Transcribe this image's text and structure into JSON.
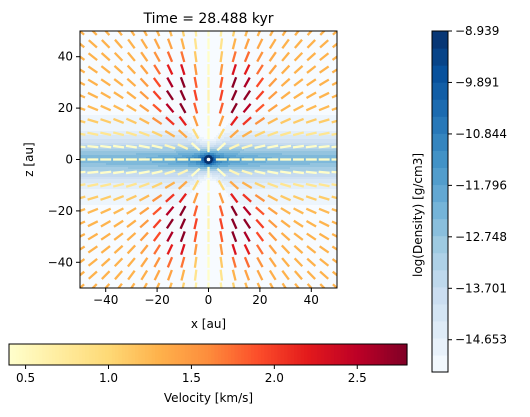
{
  "chart_data": {
    "type": "heatmap",
    "title": "Time = 28.488 kyr",
    "xlabel": "x [au]",
    "ylabel": "z [au]",
    "xlim": [
      -50,
      50
    ],
    "ylim": [
      -50,
      50
    ],
    "xticks": [
      -40,
      -20,
      0,
      20,
      40
    ],
    "yticks": [
      -40,
      -20,
      0,
      20,
      40
    ],
    "xtick_labels": [
      "−40",
      "−20",
      "0",
      "20",
      "40"
    ],
    "ytick_labels": [
      "−40",
      "−20",
      "0",
      "20",
      "40"
    ],
    "grid": false,
    "density_colorbar": {
      "label": "log(Density) [g/cm3]",
      "range": [
        -15.25,
        -8.939
      ],
      "ticks": [
        -8.939,
        -9.891,
        -10.844,
        -11.796,
        -12.748,
        -13.701,
        -14.653
      ],
      "tick_labels": [
        "−8.939",
        "−9.891",
        "−10.844",
        "−11.796",
        "−12.748",
        "−13.701",
        "−14.653"
      ],
      "levels": 20,
      "colormap": "Blues",
      "colors": [
        "#f7fbff",
        "#deebf7",
        "#c6dbef",
        "#9ecae1",
        "#6baed6",
        "#4292c6",
        "#2171b5",
        "#08519c",
        "#08306b"
      ]
    },
    "velocity_colorbar": {
      "label": "Velocity [km/s]",
      "range": [
        0.4,
        2.8
      ],
      "ticks": [
        0.5,
        1.0,
        1.5,
        2.0,
        2.5
      ],
      "tick_labels": [
        "0.5",
        "1.0",
        "1.5",
        "2.0",
        "2.5"
      ],
      "colormap": "YlOrRd",
      "colors": [
        "#ffffcc",
        "#ffeda0",
        "#fed976",
        "#feb24c",
        "#fd8d3c",
        "#fc4e2a",
        "#e31a1c",
        "#bd0026",
        "#800026"
      ]
    },
    "vectors": {
      "grid_x": [
        -50,
        -45,
        -40,
        -35,
        -30,
        -25,
        -20,
        -15,
        -10,
        -5,
        0,
        5,
        10,
        15,
        20,
        25,
        30,
        35,
        40,
        45,
        50
      ],
      "grid_z": [
        -50,
        -45,
        -40,
        -35,
        -30,
        -25,
        -20,
        -15,
        -10,
        -5,
        0,
        5,
        10,
        15,
        20,
        25,
        30,
        35,
        40,
        45,
        50
      ],
      "field": "infall toward origin, fastest (~2.7 km/s) near |x|~10 au, |z|~25 au; slow (~0.5 km/s) along midplane and polar axis"
    }
  }
}
